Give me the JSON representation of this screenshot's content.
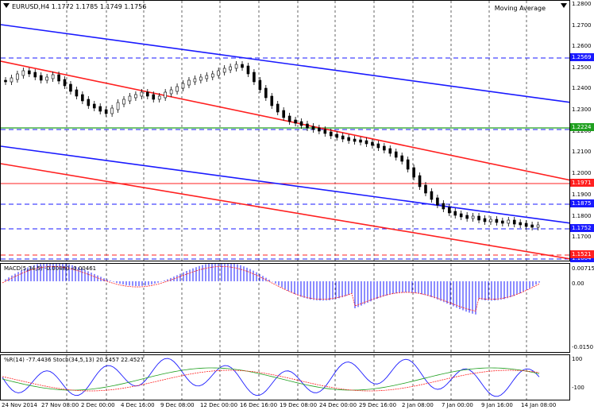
{
  "chart_header": {
    "symbol": "EURUSD,H4",
    "ohlc": "1.1772 1.1785 1.1749 1.1756",
    "indicator": "Moving Average"
  },
  "price_axis": {
    "labels": [
      "1.2800",
      "1.2700",
      "1.2600",
      "1.2500",
      "1.2400",
      "1.2300",
      "1.2200",
      "1.2100",
      "1.2000",
      "1.1900",
      "1.1800",
      "1.1700",
      "1.1500"
    ],
    "tags": [
      {
        "text": "1.2569",
        "color": "#1a1aff"
      },
      {
        "text": "1.2224",
        "color": "#20a020"
      },
      {
        "text": "1.1971",
        "color": "#ff2020"
      },
      {
        "text": "1.1875",
        "color": "#1a1aff"
      },
      {
        "text": "1.1752",
        "color": "#1a1aff"
      },
      {
        "text": "1.1604",
        "color": "#1a1aff"
      },
      {
        "text": "1.1521",
        "color": "#ff2020"
      }
    ]
  },
  "macd": {
    "title": "MACD(5,34,5) -0.00480 -0.00461",
    "axis": [
      "0.00715",
      "0.00",
      "-0.0150"
    ]
  },
  "wpr": {
    "title": "%R(14) -77.4436  Stoch(34,5,13) 20.5457 22.4527",
    "axis": [
      "100",
      "-100"
    ]
  },
  "time_axis": [
    "24 Nov 2014",
    "27 Nov 08:00",
    "2 Dec 00:00",
    "4 Dec 16:00",
    "9 Dec 08:00",
    "12 Dec 00:00",
    "16 Dec 16:00",
    "19 Dec 08:00",
    "24 Dec 00:00",
    "29 Dec 16:00",
    "2 Jan 08:00",
    "7 Jan 00:00",
    "9 Jan 16:00",
    "14 Jan 08:00"
  ],
  "colors": {
    "blue": "#1a1aff",
    "red": "#ff2020",
    "green": "#20a020",
    "grid": "#555555"
  }
}
